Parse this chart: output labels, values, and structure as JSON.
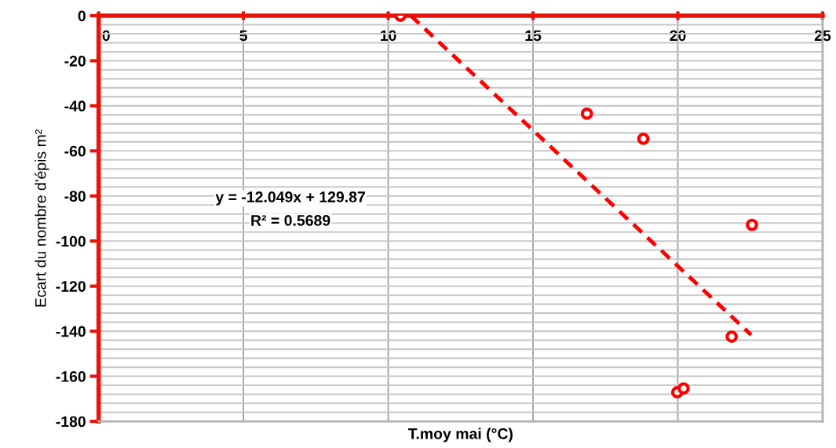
{
  "chart_data": {
    "type": "scatter",
    "xlabel": "T.moy mai (°C)",
    "ylabel": "Ecart du nombre d'épis m²",
    "annotations": [
      "y = -12.049x + 129.87",
      "R² = 0.5689"
    ],
    "series": [
      {
        "type": "scatter",
        "color": "#ff0000",
        "marker": "circle",
        "x": [
          10.42,
          16.86,
          18.81,
          22.56,
          21.86,
          19.98,
          20.2
        ],
        "values": [
          0,
          -43.5,
          -54.6,
          -92.8,
          -142.4,
          -167.1,
          -165.4
        ]
      },
      {
        "type": "line",
        "color": "#ff0000",
        "line_style": "dashed",
        "marker": "none",
        "x": [
          10.78,
          22.53
        ],
        "values": [
          0.0,
          -141.6
        ]
      }
    ],
    "xlim": [
      0,
      25
    ],
    "xticks": [
      0,
      5,
      10,
      15,
      20,
      25
    ],
    "ylim": [
      -180,
      0
    ],
    "yticks": [
      -180,
      {
        "value": -176,
        "label": null
      },
      {
        "value": -172,
        "label": null
      },
      {
        "value": -168,
        "label": null
      },
      {
        "value": -164,
        "label": null
      },
      -160,
      {
        "value": -156,
        "label": null
      },
      {
        "value": -152,
        "label": null
      },
      {
        "value": -148,
        "label": null
      },
      {
        "value": -144,
        "label": null
      },
      -140,
      {
        "value": -136,
        "label": null
      },
      {
        "value": -132,
        "label": null
      },
      {
        "value": -128,
        "label": null
      },
      {
        "value": -124,
        "label": null
      },
      -120,
      {
        "value": -116,
        "label": null
      },
      {
        "value": -112,
        "label": null
      },
      {
        "value": -108,
        "label": null
      },
      {
        "value": -104,
        "label": null
      },
      -100,
      {
        "value": -96,
        "label": null
      },
      {
        "value": -92,
        "label": null
      },
      {
        "value": -88,
        "label": null
      },
      {
        "value": -84,
        "label": null
      },
      -80,
      {
        "value": -76,
        "label": null
      },
      {
        "value": -72,
        "label": null
      },
      {
        "value": -68,
        "label": null
      },
      {
        "value": -64,
        "label": null
      },
      -60,
      {
        "value": -56,
        "label": null
      },
      {
        "value": -52,
        "label": null
      },
      {
        "value": -48,
        "label": null
      },
      {
        "value": -44,
        "label": null
      },
      -40,
      {
        "value": -36,
        "label": null
      },
      {
        "value": -32,
        "label": null
      },
      {
        "value": -28,
        "label": null
      },
      {
        "value": -24,
        "label": null
      },
      -20,
      {
        "value": -16,
        "label": null
      },
      {
        "value": -12,
        "label": null
      },
      {
        "value": -8,
        "label": null
      },
      {
        "value": -4,
        "label": null
      },
      0
    ],
    "grid": true,
    "legend": false
  }
}
